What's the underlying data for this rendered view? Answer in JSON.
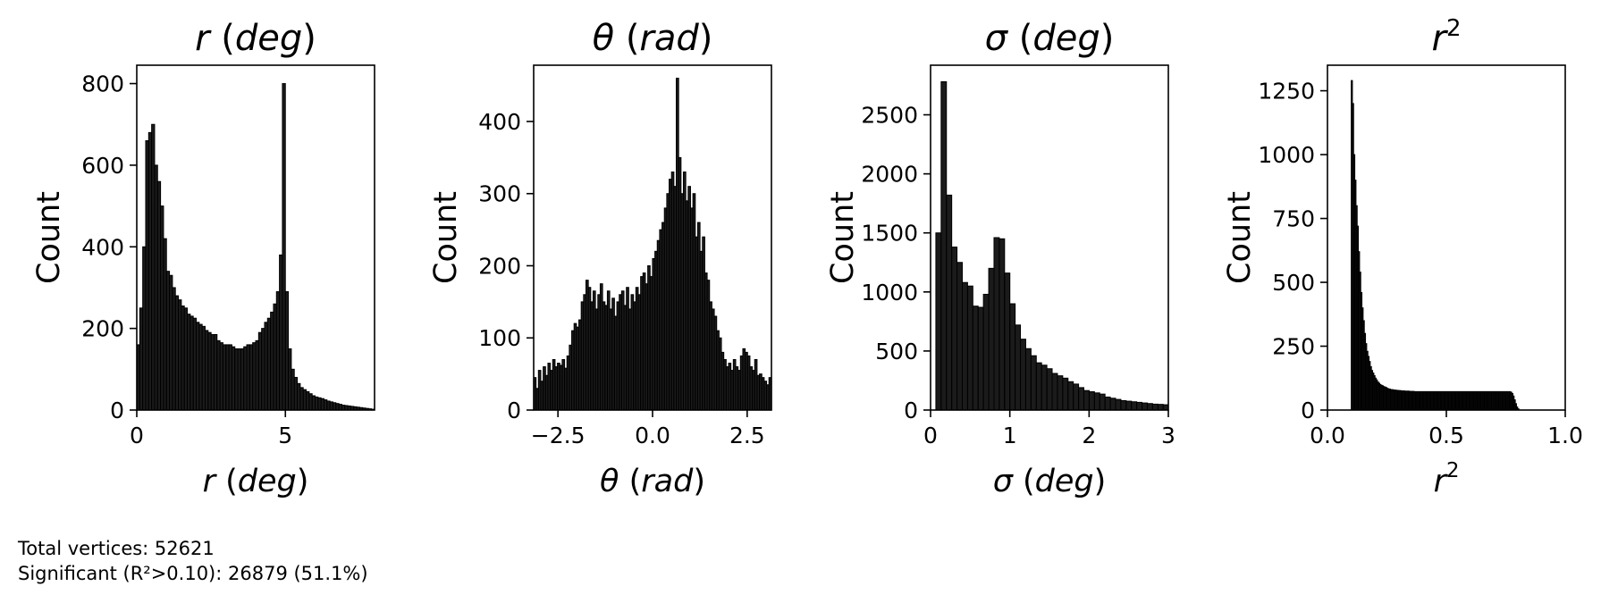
{
  "chart_data": [
    {
      "type": "histogram",
      "title_sym": "r",
      "title_unit": "(deg)",
      "xlabel_sym": "r",
      "xlabel_unit": "(deg)",
      "ylabel": "Count",
      "xlim": [
        0,
        8.0
      ],
      "ylim": [
        0,
        845
      ],
      "xticks": [
        0,
        5
      ],
      "xtick_labels": [
        "0",
        "5"
      ],
      "yticks": [
        0,
        200,
        400,
        600,
        800
      ],
      "ytick_labels": [
        "0",
        "200",
        "400",
        "600",
        "800"
      ],
      "bin_start": 0,
      "bin_width": 0.1,
      "values": [
        160,
        250,
        400,
        660,
        680,
        700,
        600,
        560,
        500,
        420,
        340,
        330,
        300,
        280,
        270,
        255,
        250,
        235,
        230,
        225,
        215,
        210,
        205,
        195,
        190,
        185,
        185,
        170,
        165,
        160,
        160,
        160,
        155,
        150,
        150,
        150,
        155,
        160,
        160,
        165,
        170,
        190,
        200,
        215,
        225,
        240,
        260,
        290,
        380,
        800,
        290,
        150,
        100,
        80,
        65,
        55,
        50,
        45,
        40,
        35,
        32,
        30,
        28,
        25,
        22,
        20,
        18,
        16,
        14,
        12,
        11,
        10,
        9,
        8,
        7,
        6,
        5,
        4,
        3,
        2
      ]
    },
    {
      "type": "histogram",
      "title_sym": "θ",
      "title_unit": "(rad)",
      "xlabel_sym": "θ",
      "xlabel_unit": "(rad)",
      "ylabel": "Count",
      "xlim": [
        -3.14159,
        3.14159
      ],
      "ylim": [
        0,
        478
      ],
      "xticks": [
        -2.5,
        0.0,
        2.5
      ],
      "xtick_labels": [
        "−2.5",
        "0.0",
        "2.5"
      ],
      "yticks": [
        0,
        100,
        200,
        300,
        400
      ],
      "ytick_labels": [
        "0",
        "100",
        "200",
        "300",
        "400"
      ],
      "bin_start": -3.14159,
      "bin_width": 0.0628,
      "values": [
        45,
        30,
        55,
        40,
        60,
        48,
        65,
        55,
        70,
        60,
        65,
        62,
        70,
        58,
        75,
        90,
        110,
        120,
        115,
        125,
        150,
        160,
        180,
        170,
        150,
        165,
        140,
        160,
        175,
        150,
        145,
        165,
        140,
        155,
        130,
        150,
        160,
        165,
        145,
        170,
        140,
        160,
        150,
        170,
        160,
        185,
        190,
        175,
        200,
        185,
        210,
        220,
        235,
        250,
        260,
        280,
        300,
        320,
        330,
        310,
        460,
        350,
        300,
        330,
        290,
        310,
        280,
        300,
        240,
        260,
        220,
        240,
        190,
        180,
        150,
        140,
        130,
        110,
        100,
        80,
        70,
        60,
        65,
        55,
        70,
        60,
        55,
        75,
        85,
        80,
        75,
        60,
        55,
        70,
        48,
        50,
        45,
        40,
        35,
        45
      ]
    },
    {
      "type": "histogram",
      "title_sym": "σ",
      "title_unit": "(deg)",
      "xlabel_sym": "σ",
      "xlabel_unit": "(deg)",
      "ylabel": "Count",
      "xlim": [
        0,
        3
      ],
      "ylim": [
        0,
        2920
      ],
      "xticks": [
        0,
        1,
        2,
        3
      ],
      "xtick_labels": [
        "0",
        "1",
        "2",
        "3"
      ],
      "yticks": [
        0,
        500,
        1000,
        1500,
        2000,
        2500
      ],
      "ytick_labels": [
        "0",
        "500",
        "1000",
        "1500",
        "2000",
        "2500"
      ],
      "bin_start": 0,
      "bin_width": 0.0667,
      "values": [
        0,
        1500,
        2780,
        1820,
        1380,
        1250,
        1080,
        1050,
        880,
        870,
        980,
        1200,
        1460,
        1450,
        1160,
        900,
        720,
        600,
        520,
        460,
        400,
        380,
        350,
        310,
        290,
        270,
        240,
        220,
        190,
        165,
        155,
        145,
        135,
        110,
        100,
        90,
        80,
        75,
        70,
        65,
        60,
        55,
        50,
        48,
        45
      ]
    },
    {
      "type": "histogram",
      "title_sym": "r",
      "title_sup": "2",
      "xlabel_sym": "r",
      "xlabel_sup": "2",
      "ylabel": "Count",
      "xlim": [
        0,
        1.0
      ],
      "ylim": [
        0,
        1350
      ],
      "xticks": [
        0.0,
        0.5,
        1.0
      ],
      "xtick_labels": [
        "0.0",
        "0.5",
        "1.0"
      ],
      "yticks": [
        0,
        250,
        500,
        750,
        1000,
        1250
      ],
      "ytick_labels": [
        "0",
        "250",
        "500",
        "750",
        "1000",
        "1250"
      ],
      "bin_start": 0.1,
      "bin_width": 0.005,
      "values": [
        1290,
        1200,
        1000,
        900,
        800,
        720,
        620,
        540,
        460,
        400,
        350,
        300,
        260,
        230,
        210,
        190,
        170,
        155,
        145,
        135,
        125,
        118,
        110,
        105,
        100,
        97,
        95,
        92,
        90,
        88,
        85,
        83,
        82,
        80,
        80,
        79,
        78,
        78,
        77,
        77,
        76,
        76,
        75,
        75,
        75,
        74,
        74,
        74,
        74,
        73,
        73,
        73,
        73,
        72,
        72,
        72,
        72,
        72,
        72,
        72,
        72,
        72,
        72,
        72,
        72,
        72,
        72,
        72,
        72,
        72,
        72,
        72,
        72,
        72,
        72,
        72,
        72,
        72,
        72,
        72,
        72,
        72,
        72,
        72,
        72,
        72,
        72,
        72,
        72,
        72,
        72,
        72,
        72,
        72,
        72,
        72,
        72,
        72,
        72,
        72,
        72,
        72,
        72,
        72,
        72,
        72,
        72,
        72,
        72,
        72,
        72,
        72,
        72,
        72,
        72,
        72,
        72,
        72,
        72,
        72,
        72,
        72,
        72,
        72,
        72,
        72,
        72,
        72,
        72,
        72,
        72,
        72,
        72,
        72,
        70,
        65,
        55,
        40,
        25,
        12,
        5
      ]
    }
  ],
  "summary": {
    "total_line": "Total vertices: 52621",
    "significant_line": "Significant (R²>0.10): 26879 (51.1%)"
  }
}
